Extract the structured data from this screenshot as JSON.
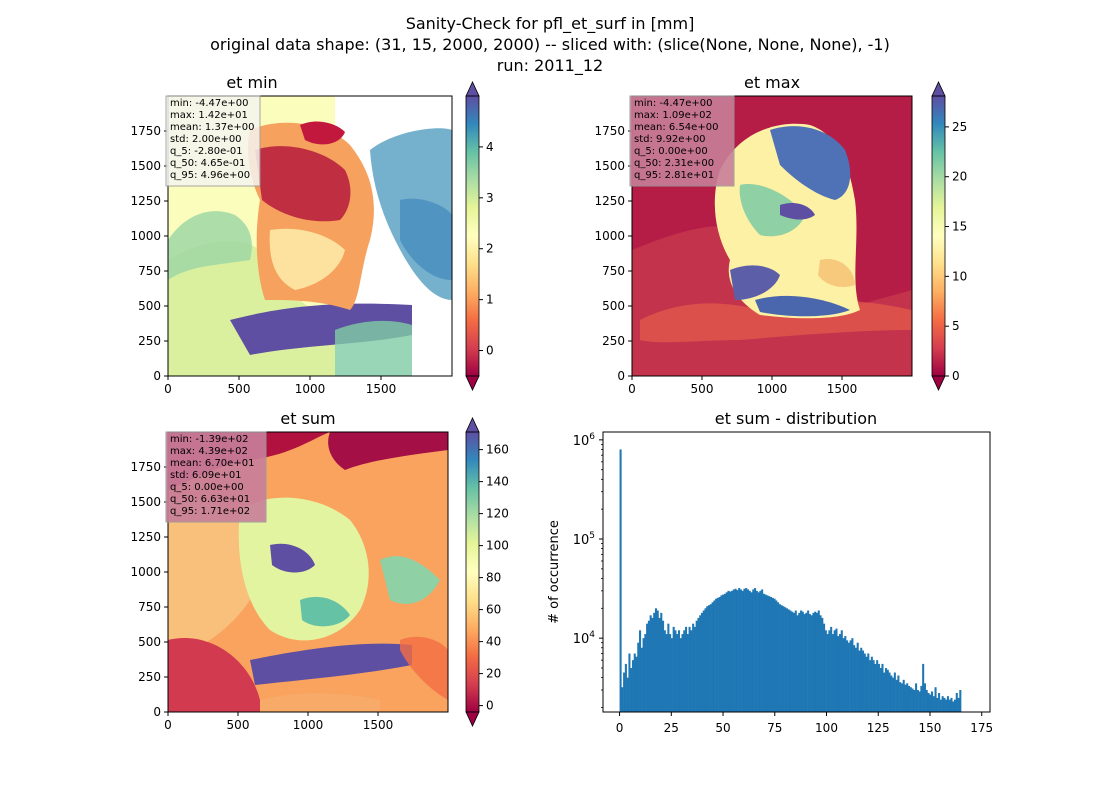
{
  "figure": {
    "title_lines": [
      "Sanity-Check for pfl_et_surf in [mm]",
      "original data shape: (31, 15, 2000, 2000) -- sliced with: (slice(None, None, None), -1)",
      "run: 2011_12"
    ]
  },
  "colormap": [
    "#9e0142",
    "#d53e4f",
    "#f46d43",
    "#fdae61",
    "#fee08b",
    "#ffffbf",
    "#e6f598",
    "#abdda4",
    "#66c2a5",
    "#3288bd",
    "#5e4fa2"
  ],
  "map_axes": {
    "xticks": [
      "0",
      "500",
      "1000",
      "1500"
    ],
    "yticks": [
      "0",
      "250",
      "500",
      "750",
      "1000",
      "1250",
      "1500",
      "1750"
    ]
  },
  "chart_data": [
    {
      "type": "heatmap",
      "title": "et min",
      "xlim": [
        0,
        2000
      ],
      "ylim": [
        0,
        2000
      ],
      "colorbar_range": [
        -0.5,
        5.0
      ],
      "colorbar_ticks": [
        "0",
        "1",
        "2",
        "3",
        "4"
      ],
      "stats": [
        "min: -4.47e+00",
        "max: 1.42e+01",
        "mean: 1.37e+00",
        "std: 2.00e+00",
        "q_5: -2.80e-01",
        "q_50: 4.65e-01",
        "q_95: 4.96e+00"
      ],
      "stats_box_color": "#f5f5f0"
    },
    {
      "type": "heatmap",
      "title": "et max",
      "xlim": [
        0,
        2000
      ],
      "ylim": [
        0,
        2000
      ],
      "colorbar_range": [
        0,
        28.1
      ],
      "colorbar_ticks": [
        "0",
        "5",
        "10",
        "15",
        "20",
        "25"
      ],
      "stats": [
        "min: -4.47e+00",
        "max: 1.09e+02",
        "mean: 6.54e+00",
        "std: 9.92e+00",
        "q_5: 0.00e+00",
        "q_50: 2.31e+00",
        "q_95: 2.81e+01"
      ],
      "stats_box_color": "#c87f9a"
    },
    {
      "type": "heatmap",
      "title": "et sum",
      "xlim": [
        0,
        2000
      ],
      "ylim": [
        0,
        2000
      ],
      "colorbar_range": [
        -4,
        171
      ],
      "colorbar_ticks": [
        "0",
        "20",
        "40",
        "60",
        "80",
        "100",
        "120",
        "140",
        "160"
      ],
      "stats": [
        "min: -1.39e+02",
        "max: 4.39e+02",
        "mean: 6.70e+01",
        "std: 6.09e+01",
        "q_5: 0.00e+00",
        "q_50: 6.63e+01",
        "q_95: 1.71e+02"
      ],
      "stats_box_color": "#c87f9a"
    },
    {
      "type": "bar",
      "title": "et sum - distribution",
      "xlabel": "",
      "ylabel": "# of occurrence",
      "yscale": "log",
      "xlim": [
        -8,
        179
      ],
      "ylim": [
        1800,
        1200000
      ],
      "xticks": [
        "0",
        "25",
        "50",
        "75",
        "100",
        "125",
        "150",
        "175"
      ],
      "yticks": [
        {
          "value": 10000,
          "base": "10",
          "exp": "4"
        },
        {
          "value": 100000,
          "base": "10",
          "exp": "5"
        },
        {
          "value": 1000000,
          "base": "10",
          "exp": "6"
        }
      ],
      "bar_color": "#1f77b4",
      "bins": {
        "start": 0,
        "width": 0.855,
        "counts": [
          800000,
          3200,
          4500,
          5500,
          4000,
          7000,
          5000,
          6000,
          7000,
          6500,
          9000,
          12000,
          8000,
          10000,
          11000,
          14000,
          15000,
          17000,
          16000,
          18000,
          20000,
          19000,
          16000,
          18000,
          15000,
          12000,
          11000,
          14000,
          11000,
          10000,
          13000,
          12000,
          11000,
          12000,
          10000,
          11000,
          12000,
          13000,
          11000,
          13000,
          12000,
          14000,
          13000,
          15000,
          16000,
          17000,
          18000,
          19000,
          20000,
          21000,
          21500,
          22000,
          23000,
          24000,
          25000,
          25500,
          26000,
          27000,
          27500,
          28000,
          29000,
          30000,
          29500,
          30000,
          31000,
          31500,
          30500,
          32000,
          31000,
          30000,
          31500,
          32000,
          31000,
          30000,
          29000,
          31000,
          32000,
          30000,
          29000,
          30000,
          31000,
          28000,
          27500,
          27000,
          26500,
          26000,
          25500,
          25000,
          24000,
          23000,
          22000,
          21500,
          21000,
          20500,
          20000,
          19500,
          19000,
          18500,
          18000,
          19000,
          17000,
          18000,
          19000,
          18500,
          17500,
          18000,
          19000,
          17500,
          17000,
          18000,
          18500,
          18000,
          19000,
          17000,
          16000,
          14000,
          12000,
          11000,
          12000,
          13000,
          11000,
          12000,
          12500,
          10500,
          11000,
          12000,
          10000,
          10500,
          9500,
          9000,
          9500,
          10000,
          8500,
          8000,
          9000,
          7500,
          8000,
          7500,
          7000,
          6500,
          7000,
          6000,
          6500,
          6000,
          5500,
          6000,
          5500,
          5000,
          5500,
          4500,
          5000,
          4800,
          4500,
          4200,
          4000,
          4500,
          3800,
          4200,
          3600,
          3500,
          3800,
          3400,
          3500,
          3300,
          3200,
          3100,
          3000,
          3500,
          3000,
          2900,
          3300,
          5500,
          3500,
          3000,
          2800,
          2700,
          2900,
          2600,
          3200,
          2500,
          2800,
          2400,
          2600,
          2500,
          2400,
          2600,
          2400,
          2500,
          2300,
          2400,
          2800,
          2500,
          3000
        ]
      }
    }
  ]
}
